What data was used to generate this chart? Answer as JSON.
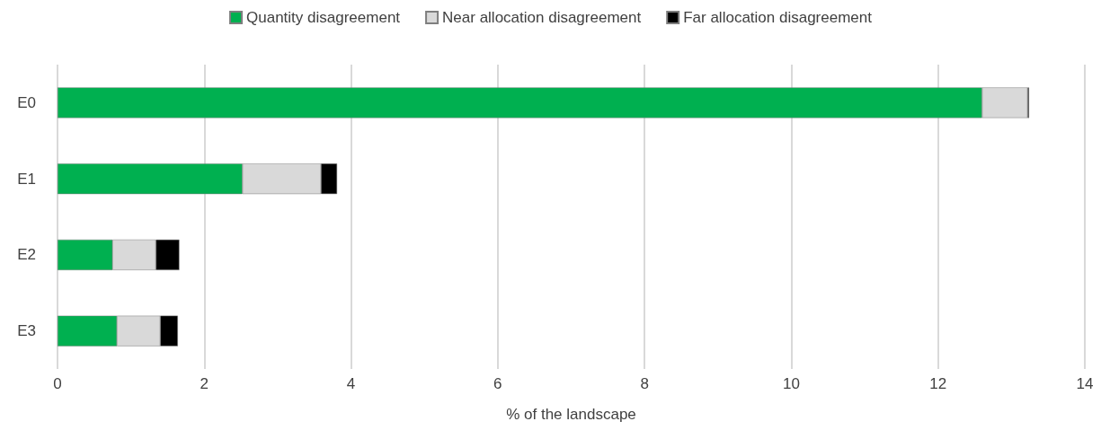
{
  "chart_data": {
    "type": "bar",
    "orientation": "horizontal",
    "stacked": true,
    "xlabel": "% of the landscape",
    "categories": [
      "E0",
      "E1",
      "E2",
      "E3"
    ],
    "series": [
      {
        "name": "Quantity disagreement",
        "color": "#00b050",
        "values": [
          12.6,
          2.52,
          0.75,
          0.81
        ]
      },
      {
        "name": "Near allocation disagreement",
        "color": "#d9d9d9",
        "values": [
          0.62,
          1.07,
          0.59,
          0.59
        ]
      },
      {
        "name": "Far allocation disagreement",
        "color": "#000000",
        "values": [
          0.02,
          0.22,
          0.32,
          0.24
        ]
      }
    ],
    "xlim": [
      0,
      14
    ],
    "xticks": [
      0,
      2,
      4,
      6,
      8,
      10,
      12,
      14
    ],
    "grid": "x",
    "legend": "top"
  }
}
